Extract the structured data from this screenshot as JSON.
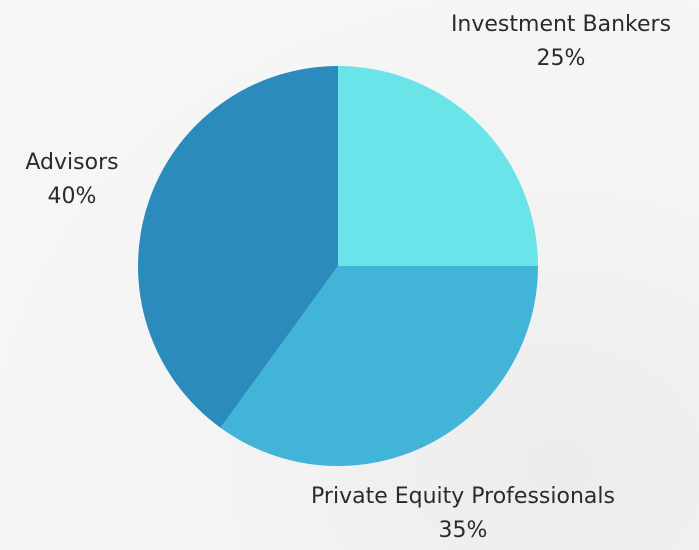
{
  "chart_data": {
    "type": "pie",
    "start_angle_deg": 0,
    "direction": "clockwise",
    "slices": [
      {
        "label": "Investment Bankers",
        "value": 25,
        "display": "25%",
        "color": "#6ae3e9"
      },
      {
        "label": "Private Equity Professionals",
        "value": 35,
        "display": "35%",
        "color": "#42b4d8"
      },
      {
        "label": "Advisors",
        "value": 40,
        "display": "40%",
        "color": "#2b8bbd"
      }
    ]
  }
}
